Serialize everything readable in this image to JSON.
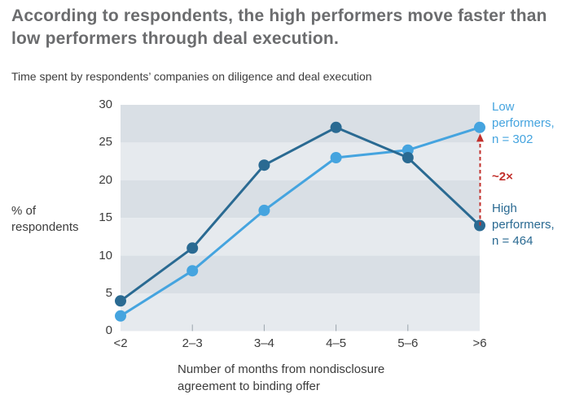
{
  "title": "According to respondents, the high performers move faster than low performers through deal execution.",
  "subtitle": "Time spent by respondents’ companies on diligence and deal execution",
  "chart_data": {
    "type": "line",
    "categories": [
      "<2",
      "2–3",
      "3–4",
      "4–5",
      "5–6",
      ">6"
    ],
    "x_axis_label": "Number of months from nondisclosure agreement to binding offer",
    "y_axis_label": "% of respondents",
    "ylim": [
      0,
      30
    ],
    "yticks": [
      0,
      5,
      10,
      15,
      20,
      25,
      30
    ],
    "grid": "alternating horizontal bands, no gridlines",
    "band_colors": [
      "#d9dfe5",
      "#e6eaee"
    ],
    "legend_position": "right",
    "series": [
      {
        "name": "Low performers, n = 302",
        "legend_lines": [
          "Low",
          "performers,",
          "n = 302"
        ],
        "color": "#45a4df",
        "values": [
          2,
          8,
          16,
          23,
          24,
          27
        ]
      },
      {
        "name": "High performers, n = 464",
        "legend_lines": [
          "High",
          "performers,",
          "n = 464"
        ],
        "color": "#2a6a92",
        "values": [
          4,
          11,
          22,
          27,
          23,
          14
        ]
      }
    ],
    "annotation": {
      "text": "~2×",
      "color": "#c2302c",
      "shape": "vertical dashed arrow pointing up",
      "category": ">6",
      "from_value": 14,
      "to_value": 27
    }
  },
  "colors": {
    "title_text": "#6b6c6e",
    "body_text": "#3c3c3c",
    "background": "#ffffff",
    "axis_tick": "#9aa4ac"
  }
}
